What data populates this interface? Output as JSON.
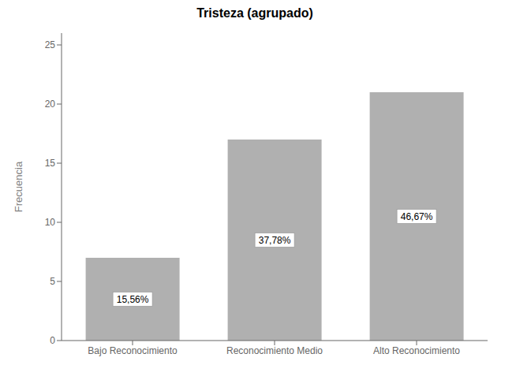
{
  "chart_data": {
    "type": "bar",
    "title": "Tristeza (agrupado)",
    "categories": [
      "Bajo Reconocimiento",
      "Reconocimiento Medio",
      "Alto Reconocimiento"
    ],
    "values": [
      7,
      17,
      21
    ],
    "annotations": [
      "15,56%",
      "37,78%",
      "46,67%"
    ],
    "color": "#b0b0b0",
    "ylabel": "Frecuencia",
    "ylim": [
      0,
      26
    ],
    "yticks": [
      0,
      5,
      10,
      15,
      20,
      25
    ],
    "grid": false
  }
}
